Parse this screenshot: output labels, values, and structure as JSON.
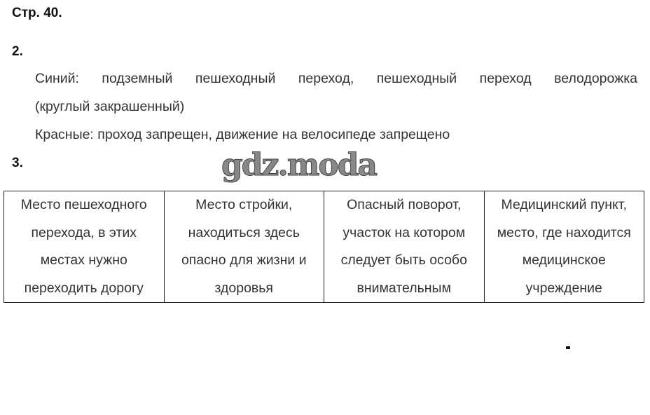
{
  "page_title": "Стр. 40.",
  "task2": {
    "number": "2.",
    "lines": [
      "Синий: подземный пешеходный переход, пешеходный переход велодорожка",
      "(круглый закрашенный)",
      "Красные: проход запрещен, движение на велосипеде запрещено"
    ]
  },
  "task3": {
    "number": "3.",
    "cells": [
      "Место пешеходного перехода, в этих местах нужно переходить дорогу",
      "Место стройки, находиться здесь опасно для жизни и здоровья",
      "Опасный поворот, участок на котором следует быть особо внимательным",
      "Медицинский пункт, место, где находится медицинское учреждение"
    ]
  },
  "watermark": "gdz.moda"
}
